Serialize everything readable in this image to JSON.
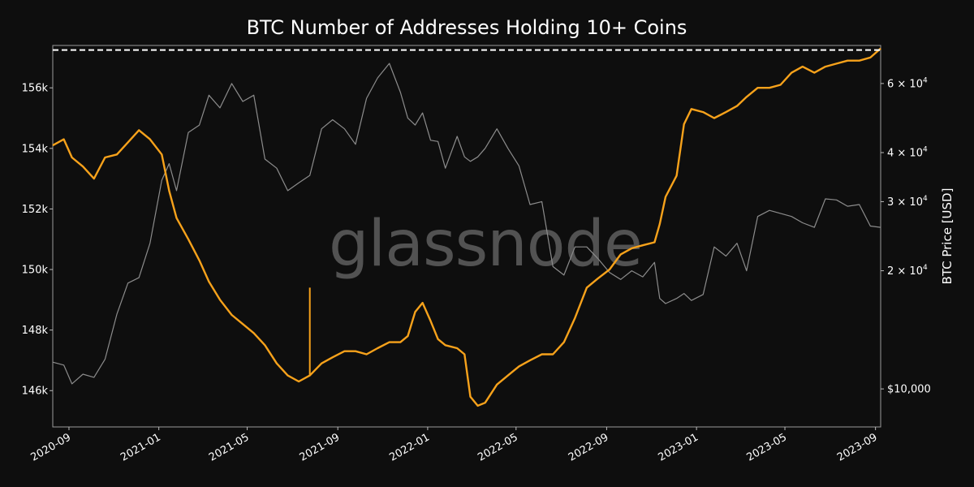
{
  "chart_data": {
    "type": "line",
    "title": "BTC Number of Addresses Holding 10+ Coins",
    "watermark": "glassnode",
    "xlabel": "",
    "x_ticks": [
      "2020-09",
      "2021-01",
      "2021-05",
      "2021-09",
      "2022-01",
      "2022-05",
      "2022-09",
      "2023-01",
      "2023-05",
      "2023-09"
    ],
    "xlim": [
      "2020-08-10",
      "2023-09-08"
    ],
    "y_left": {
      "label": "",
      "ticks": [
        "146k",
        "148k",
        "150k",
        "152k",
        "154k",
        "156k"
      ],
      "tick_values": [
        146000,
        148000,
        150000,
        152000,
        154000,
        156000
      ],
      "ylim": [
        144800,
        157400
      ]
    },
    "y_right": {
      "label": "BTC Price [USD]",
      "scale": "log",
      "ticks": [
        {
          "value": 10000,
          "base": "$10,000",
          "exp": ""
        },
        {
          "value": 20000,
          "base": "2 × 10",
          "exp": "4"
        },
        {
          "value": 30000,
          "base": "3 × 10",
          "exp": "4"
        },
        {
          "value": 40000,
          "base": "4 × 10",
          "exp": "4"
        },
        {
          "value": 60000,
          "base": "6 × 10",
          "exp": "4"
        }
      ],
      "ylim": [
        8000,
        75000
      ]
    },
    "reference_line": {
      "value": 157250,
      "style": "dashed",
      "color": "#ffffff"
    },
    "series": [
      {
        "axis": "left",
        "color": "#f7a21b",
        "points": [
          [
            "2020-08-10",
            154100
          ],
          [
            "2020-08-25",
            154300
          ],
          [
            "2020-09-05",
            153700
          ],
          [
            "2020-09-20",
            153400
          ],
          [
            "2020-10-05",
            153000
          ],
          [
            "2020-10-20",
            153700
          ],
          [
            "2020-11-05",
            153800
          ],
          [
            "2020-11-20",
            154200
          ],
          [
            "2020-12-05",
            154600
          ],
          [
            "2020-12-20",
            154300
          ],
          [
            "2021-01-05",
            153800
          ],
          [
            "2021-01-15",
            152600
          ],
          [
            "2021-01-25",
            151700
          ],
          [
            "2021-02-10",
            151000
          ],
          [
            "2021-02-25",
            150300
          ],
          [
            "2021-03-10",
            149600
          ],
          [
            "2021-03-25",
            149000
          ],
          [
            "2021-04-10",
            148500
          ],
          [
            "2021-04-25",
            148200
          ],
          [
            "2021-05-10",
            147900
          ],
          [
            "2021-05-25",
            147500
          ],
          [
            "2021-06-10",
            146900
          ],
          [
            "2021-06-25",
            146500
          ],
          [
            "2021-07-10",
            146300
          ],
          [
            "2021-07-25",
            146500
          ],
          [
            "2021-08-10",
            146900
          ],
          [
            "2021-08-25",
            147100
          ],
          [
            "2021-09-10",
            147300
          ],
          [
            "2021-09-25",
            147300
          ],
          [
            "2021-10-10",
            147200
          ],
          [
            "2021-10-25",
            147400
          ],
          [
            "2021-11-10",
            147600
          ],
          [
            "2021-11-25",
            147600
          ],
          [
            "2021-12-05",
            147800
          ],
          [
            "2021-12-15",
            148600
          ],
          [
            "2021-12-25",
            148900
          ],
          [
            "2022-01-05",
            148300
          ],
          [
            "2022-01-15",
            147700
          ],
          [
            "2022-01-25",
            147500
          ],
          [
            "2022-02-10",
            147400
          ],
          [
            "2022-02-20",
            147200
          ],
          [
            "2022-02-28",
            145800
          ],
          [
            "2022-03-10",
            145500
          ],
          [
            "2022-03-20",
            145600
          ],
          [
            "2022-04-05",
            146200
          ],
          [
            "2022-04-20",
            146500
          ],
          [
            "2022-05-05",
            146800
          ],
          [
            "2022-05-20",
            147000
          ],
          [
            "2022-06-05",
            147200
          ],
          [
            "2022-06-20",
            147200
          ],
          [
            "2022-07-05",
            147600
          ],
          [
            "2022-07-20",
            148400
          ],
          [
            "2022-08-05",
            149400
          ],
          [
            "2022-08-20",
            149700
          ],
          [
            "2022-09-05",
            150000
          ],
          [
            "2022-09-20",
            150500
          ],
          [
            "2022-10-05",
            150700
          ],
          [
            "2022-10-20",
            150800
          ],
          [
            "2022-11-05",
            150900
          ],
          [
            "2022-11-12",
            151500
          ],
          [
            "2022-11-20",
            152400
          ],
          [
            "2022-12-05",
            153100
          ],
          [
            "2022-12-15",
            154800
          ],
          [
            "2022-12-25",
            155300
          ],
          [
            "2023-01-10",
            155200
          ],
          [
            "2023-01-25",
            155000
          ],
          [
            "2023-02-10",
            155200
          ],
          [
            "2023-02-25",
            155400
          ],
          [
            "2023-03-10",
            155700
          ],
          [
            "2023-03-25",
            156000
          ],
          [
            "2023-04-10",
            156000
          ],
          [
            "2023-04-25",
            156100
          ],
          [
            "2023-05-10",
            156500
          ],
          [
            "2023-05-25",
            156700
          ],
          [
            "2023-06-10",
            156500
          ],
          [
            "2023-06-25",
            156700
          ],
          [
            "2023-07-10",
            156800
          ],
          [
            "2023-07-25",
            156900
          ],
          [
            "2023-08-10",
            156900
          ],
          [
            "2023-08-25",
            157000
          ],
          [
            "2023-09-08",
            157300
          ]
        ],
        "spikes": [
          [
            "2021-07-25",
            149400
          ]
        ]
      },
      {
        "axis": "right",
        "color": "#8c8c8c",
        "points": [
          [
            "2020-08-10",
            11700
          ],
          [
            "2020-08-25",
            11500
          ],
          [
            "2020-09-05",
            10300
          ],
          [
            "2020-09-20",
            10900
          ],
          [
            "2020-10-05",
            10700
          ],
          [
            "2020-10-20",
            11900
          ],
          [
            "2020-11-05",
            15500
          ],
          [
            "2020-11-20",
            18600
          ],
          [
            "2020-12-05",
            19200
          ],
          [
            "2020-12-20",
            23500
          ],
          [
            "2021-01-05",
            34000
          ],
          [
            "2021-01-15",
            37500
          ],
          [
            "2021-01-25",
            32000
          ],
          [
            "2021-02-10",
            45000
          ],
          [
            "2021-02-25",
            47000
          ],
          [
            "2021-03-10",
            56000
          ],
          [
            "2021-03-25",
            52000
          ],
          [
            "2021-04-10",
            60000
          ],
          [
            "2021-04-25",
            54000
          ],
          [
            "2021-05-10",
            56000
          ],
          [
            "2021-05-25",
            38500
          ],
          [
            "2021-06-10",
            36500
          ],
          [
            "2021-06-25",
            32000
          ],
          [
            "2021-07-10",
            33500
          ],
          [
            "2021-07-25",
            35000
          ],
          [
            "2021-08-10",
            46000
          ],
          [
            "2021-08-25",
            48500
          ],
          [
            "2021-09-10",
            46000
          ],
          [
            "2021-09-25",
            42000
          ],
          [
            "2021-10-10",
            55000
          ],
          [
            "2021-10-25",
            62000
          ],
          [
            "2021-11-10",
            67500
          ],
          [
            "2021-11-25",
            57000
          ],
          [
            "2021-12-05",
            49000
          ],
          [
            "2021-12-15",
            47000
          ],
          [
            "2021-12-25",
            50500
          ],
          [
            "2022-01-05",
            43000
          ],
          [
            "2022-01-15",
            42700
          ],
          [
            "2022-01-25",
            36500
          ],
          [
            "2022-02-10",
            44000
          ],
          [
            "2022-02-20",
            39000
          ],
          [
            "2022-02-28",
            38000
          ],
          [
            "2022-03-10",
            39000
          ],
          [
            "2022-03-20",
            41000
          ],
          [
            "2022-04-05",
            46000
          ],
          [
            "2022-04-20",
            41000
          ],
          [
            "2022-05-05",
            37000
          ],
          [
            "2022-05-20",
            29500
          ],
          [
            "2022-06-05",
            30000
          ],
          [
            "2022-06-20",
            20500
          ],
          [
            "2022-07-05",
            19500
          ],
          [
            "2022-07-20",
            23000
          ],
          [
            "2022-08-05",
            23000
          ],
          [
            "2022-08-20",
            21500
          ],
          [
            "2022-09-05",
            19800
          ],
          [
            "2022-09-20",
            19000
          ],
          [
            "2022-10-05",
            20000
          ],
          [
            "2022-10-20",
            19300
          ],
          [
            "2022-11-05",
            21000
          ],
          [
            "2022-11-12",
            17000
          ],
          [
            "2022-11-20",
            16500
          ],
          [
            "2022-12-05",
            17000
          ],
          [
            "2022-12-15",
            17500
          ],
          [
            "2022-12-25",
            16800
          ],
          [
            "2023-01-10",
            17400
          ],
          [
            "2023-01-25",
            23000
          ],
          [
            "2023-02-10",
            21800
          ],
          [
            "2023-02-25",
            23500
          ],
          [
            "2023-03-10",
            20000
          ],
          [
            "2023-03-25",
            27500
          ],
          [
            "2023-04-10",
            28500
          ],
          [
            "2023-04-25",
            28000
          ],
          [
            "2023-05-10",
            27500
          ],
          [
            "2023-05-25",
            26500
          ],
          [
            "2023-06-10",
            25800
          ],
          [
            "2023-06-25",
            30500
          ],
          [
            "2023-07-10",
            30300
          ],
          [
            "2023-07-25",
            29200
          ],
          [
            "2023-08-10",
            29500
          ],
          [
            "2023-08-25",
            26000
          ],
          [
            "2023-09-08",
            25800
          ]
        ]
      }
    ]
  }
}
